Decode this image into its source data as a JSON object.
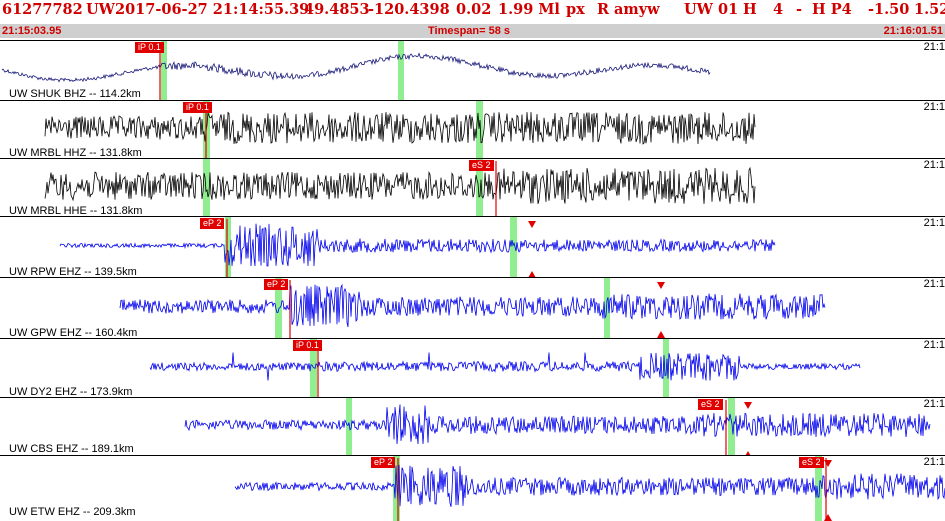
{
  "header": {
    "event_id": "61277782",
    "network": "UW",
    "datetime": "2017-06-27 21:14:55.39",
    "lat": "49.4853",
    "lon": "-120.4398",
    "depth": "0.02",
    "magnitude": "1.99 Ml",
    "type": "px",
    "review": "R",
    "author": "amyw",
    "network2": "UW 01",
    "quality": "H",
    "count": "4",
    "dash": "-",
    "hp": "H P4",
    "val1": "-1.50",
    "val2": "1.52"
  },
  "timebar": {
    "start": "21:15:03.95",
    "span": "Timespan=  58 s",
    "end": "21:16:01.51"
  },
  "colors": {
    "title": "#d00000",
    "trace_dark": "#000000",
    "trace_navy": "#1a1a7a",
    "trace_blue": "#0000ee",
    "pick": "#e00000",
    "window": "#90ee90"
  },
  "panels": [
    {
      "label": "UW SHUK BHZ -- 114.2km",
      "edge": "21:1",
      "picks": [
        {
          "text": "iP 0.1"
        }
      ]
    },
    {
      "label": "UW MRBL HHZ -- 131.8km",
      "edge": "21:1",
      "picks": [
        {
          "text": "iP 0.1"
        }
      ]
    },
    {
      "label": "UW MRBL HHE -- 131.8km",
      "edge": "21:1",
      "picks": [
        {
          "text": "eS 2"
        }
      ]
    },
    {
      "label": "UW RPW EHZ -- 139.5km",
      "edge": "21:1",
      "picks": [
        {
          "text": "eP 2"
        }
      ]
    },
    {
      "label": "UW GPW EHZ -- 160.4km",
      "edge": "21:1",
      "picks": [
        {
          "text": "eP 2"
        }
      ]
    },
    {
      "label": "UW DY2 EHZ -- 173.9km",
      "edge": "21:1",
      "picks": [
        {
          "text": "iP 0.1"
        }
      ]
    },
    {
      "label": "UW CBS EHZ -- 189.1km",
      "edge": "21:1",
      "picks": [
        {
          "text": "eS 2"
        }
      ]
    },
    {
      "label": "UW ETW EHZ -- 209.3km",
      "edge": "21:1",
      "picks": [
        {
          "text": "eP 2"
        },
        {
          "text": "eS 2"
        }
      ]
    }
  ]
}
